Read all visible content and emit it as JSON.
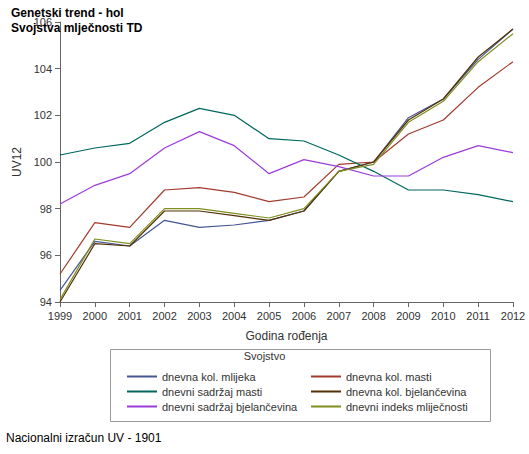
{
  "chart_data": {
    "type": "line",
    "title": "Genetski trend - hol",
    "subtitle": "Svojstva mlječnosti TD",
    "x_label": "Godina rođenja",
    "y_label": "UV12",
    "legend_title": "Svojstvo",
    "footnote": "Nacionalni izračun UV - 1901",
    "categories": [
      "1999",
      "2000",
      "2001",
      "2002",
      "2003",
      "2004",
      "2005",
      "2006",
      "2007",
      "2008",
      "2009",
      "2010",
      "2011",
      "2012"
    ],
    "ylim": [
      94,
      106
    ],
    "yticks": [
      94,
      96,
      98,
      100,
      102,
      104,
      106
    ],
    "grid": false,
    "legend": "bottom",
    "series": [
      {
        "name": "dnevna kol. mlijeka",
        "color": "#445694",
        "values": [
          94.5,
          96.6,
          96.4,
          97.5,
          97.2,
          97.3,
          97.5,
          97.9,
          99.6,
          100.0,
          101.9,
          102.7,
          104.4,
          105.7
        ]
      },
      {
        "name": "dnevna kol. masti",
        "color": "#a23a2e",
        "values": [
          95.2,
          97.4,
          97.2,
          98.8,
          98.9,
          98.7,
          98.3,
          98.5,
          99.9,
          100.0,
          101.2,
          101.8,
          103.2,
          104.3
        ]
      },
      {
        "name": "dnevni sadržaj masti",
        "color": "#01665e",
        "values": [
          100.3,
          100.6,
          100.8,
          101.7,
          102.3,
          102.0,
          101.0,
          100.9,
          100.3,
          99.6,
          98.8,
          98.8,
          98.6,
          98.3
        ]
      },
      {
        "name": "dnevna kol. bjelančevina",
        "color": "#543005",
        "values": [
          94.0,
          96.5,
          96.4,
          97.9,
          97.9,
          97.7,
          97.5,
          97.9,
          99.6,
          100.0,
          101.8,
          102.7,
          104.5,
          105.7
        ]
      },
      {
        "name": "dnevni sadržaj bjelančevina",
        "color": "#9d3cdb",
        "values": [
          98.2,
          99.0,
          99.5,
          100.6,
          101.3,
          100.7,
          99.5,
          100.1,
          99.8,
          99.4,
          99.4,
          100.2,
          100.7,
          100.4
        ]
      },
      {
        "name": "dnevni indeks mliječnosti",
        "color": "#7f8e1f",
        "values": [
          94.1,
          96.7,
          96.5,
          98.0,
          98.0,
          97.8,
          97.6,
          98.0,
          99.6,
          99.9,
          101.7,
          102.6,
          104.3,
          105.5
        ]
      }
    ]
  }
}
